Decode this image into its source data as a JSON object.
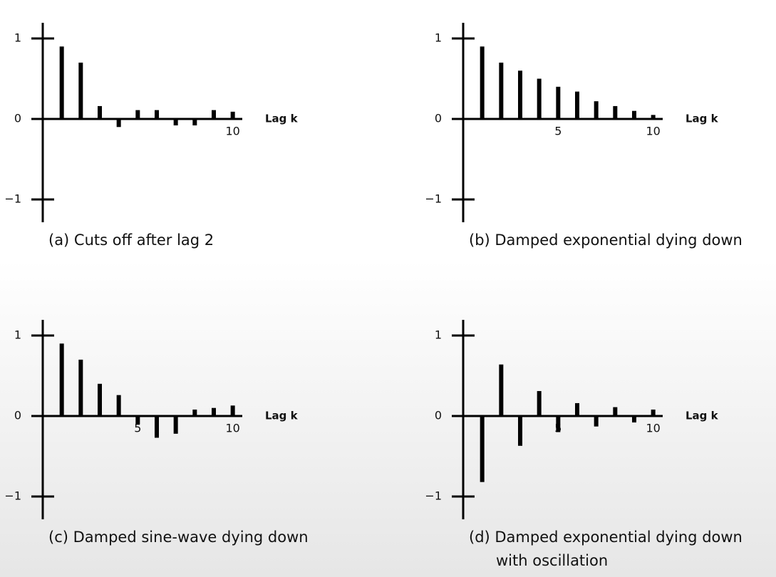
{
  "chart_data": [
    {
      "type": "bar",
      "title": "(a) Cuts off after lag 2",
      "x_label": "Lag k",
      "color": "#000000",
      "x": [
        1,
        2,
        3,
        4,
        5,
        6,
        7,
        8,
        9,
        10
      ],
      "values": [
        0.9,
        0.7,
        0.16,
        -0.1,
        0.11,
        0.11,
        -0.08,
        -0.08,
        0.11,
        0.09
      ],
      "xlim": [
        0,
        10.5
      ],
      "xticks": [
        10
      ],
      "ylim": [
        -1,
        1
      ],
      "yticks": [
        {
          "value": -1,
          "label": "−1"
        },
        0,
        1
      ]
    },
    {
      "type": "bar",
      "title": "(b) Damped exponential dying down",
      "x_label": "Lag k",
      "color": "#000000",
      "x": [
        1,
        2,
        3,
        4,
        5,
        6,
        7,
        8,
        9,
        10
      ],
      "values": [
        0.9,
        0.7,
        0.6,
        0.5,
        0.4,
        0.34,
        0.22,
        0.16,
        0.1,
        0.05
      ],
      "xlim": [
        0,
        10.5
      ],
      "xticks": [
        5,
        10
      ],
      "ylim": [
        -1,
        1
      ],
      "yticks": [
        {
          "value": -1,
          "label": "−1"
        },
        0,
        1
      ]
    },
    {
      "type": "bar",
      "title": "(c) Damped sine-wave dying down",
      "x_label": "Lag k",
      "color": "#000000",
      "x": [
        1,
        2,
        3,
        4,
        5,
        6,
        7,
        8,
        9,
        10
      ],
      "values": [
        0.9,
        0.7,
        0.4,
        0.26,
        -0.1,
        -0.27,
        -0.22,
        0.08,
        0.1,
        0.13
      ],
      "xlim": [
        0,
        10.5
      ],
      "xticks": [
        5,
        10
      ],
      "ylim": [
        -1,
        1
      ],
      "yticks": [
        {
          "value": -1,
          "label": "−1"
        },
        0,
        1
      ]
    },
    {
      "type": "bar",
      "title": [
        "(d) Damped exponential dying down",
        "with oscillation"
      ],
      "x_label": "Lag k",
      "color": "#000000",
      "x": [
        1,
        2,
        3,
        4,
        5,
        6,
        7,
        8,
        9,
        10
      ],
      "values": [
        -0.82,
        0.64,
        -0.37,
        0.31,
        -0.2,
        0.16,
        -0.13,
        0.11,
        -0.08,
        0.08
      ],
      "xlim": [
        0,
        10.5
      ],
      "xticks": [
        5,
        10
      ],
      "ylim": [
        -1,
        1
      ],
      "yticks": [
        {
          "value": -1,
          "label": "−1"
        },
        0,
        1
      ]
    }
  ]
}
